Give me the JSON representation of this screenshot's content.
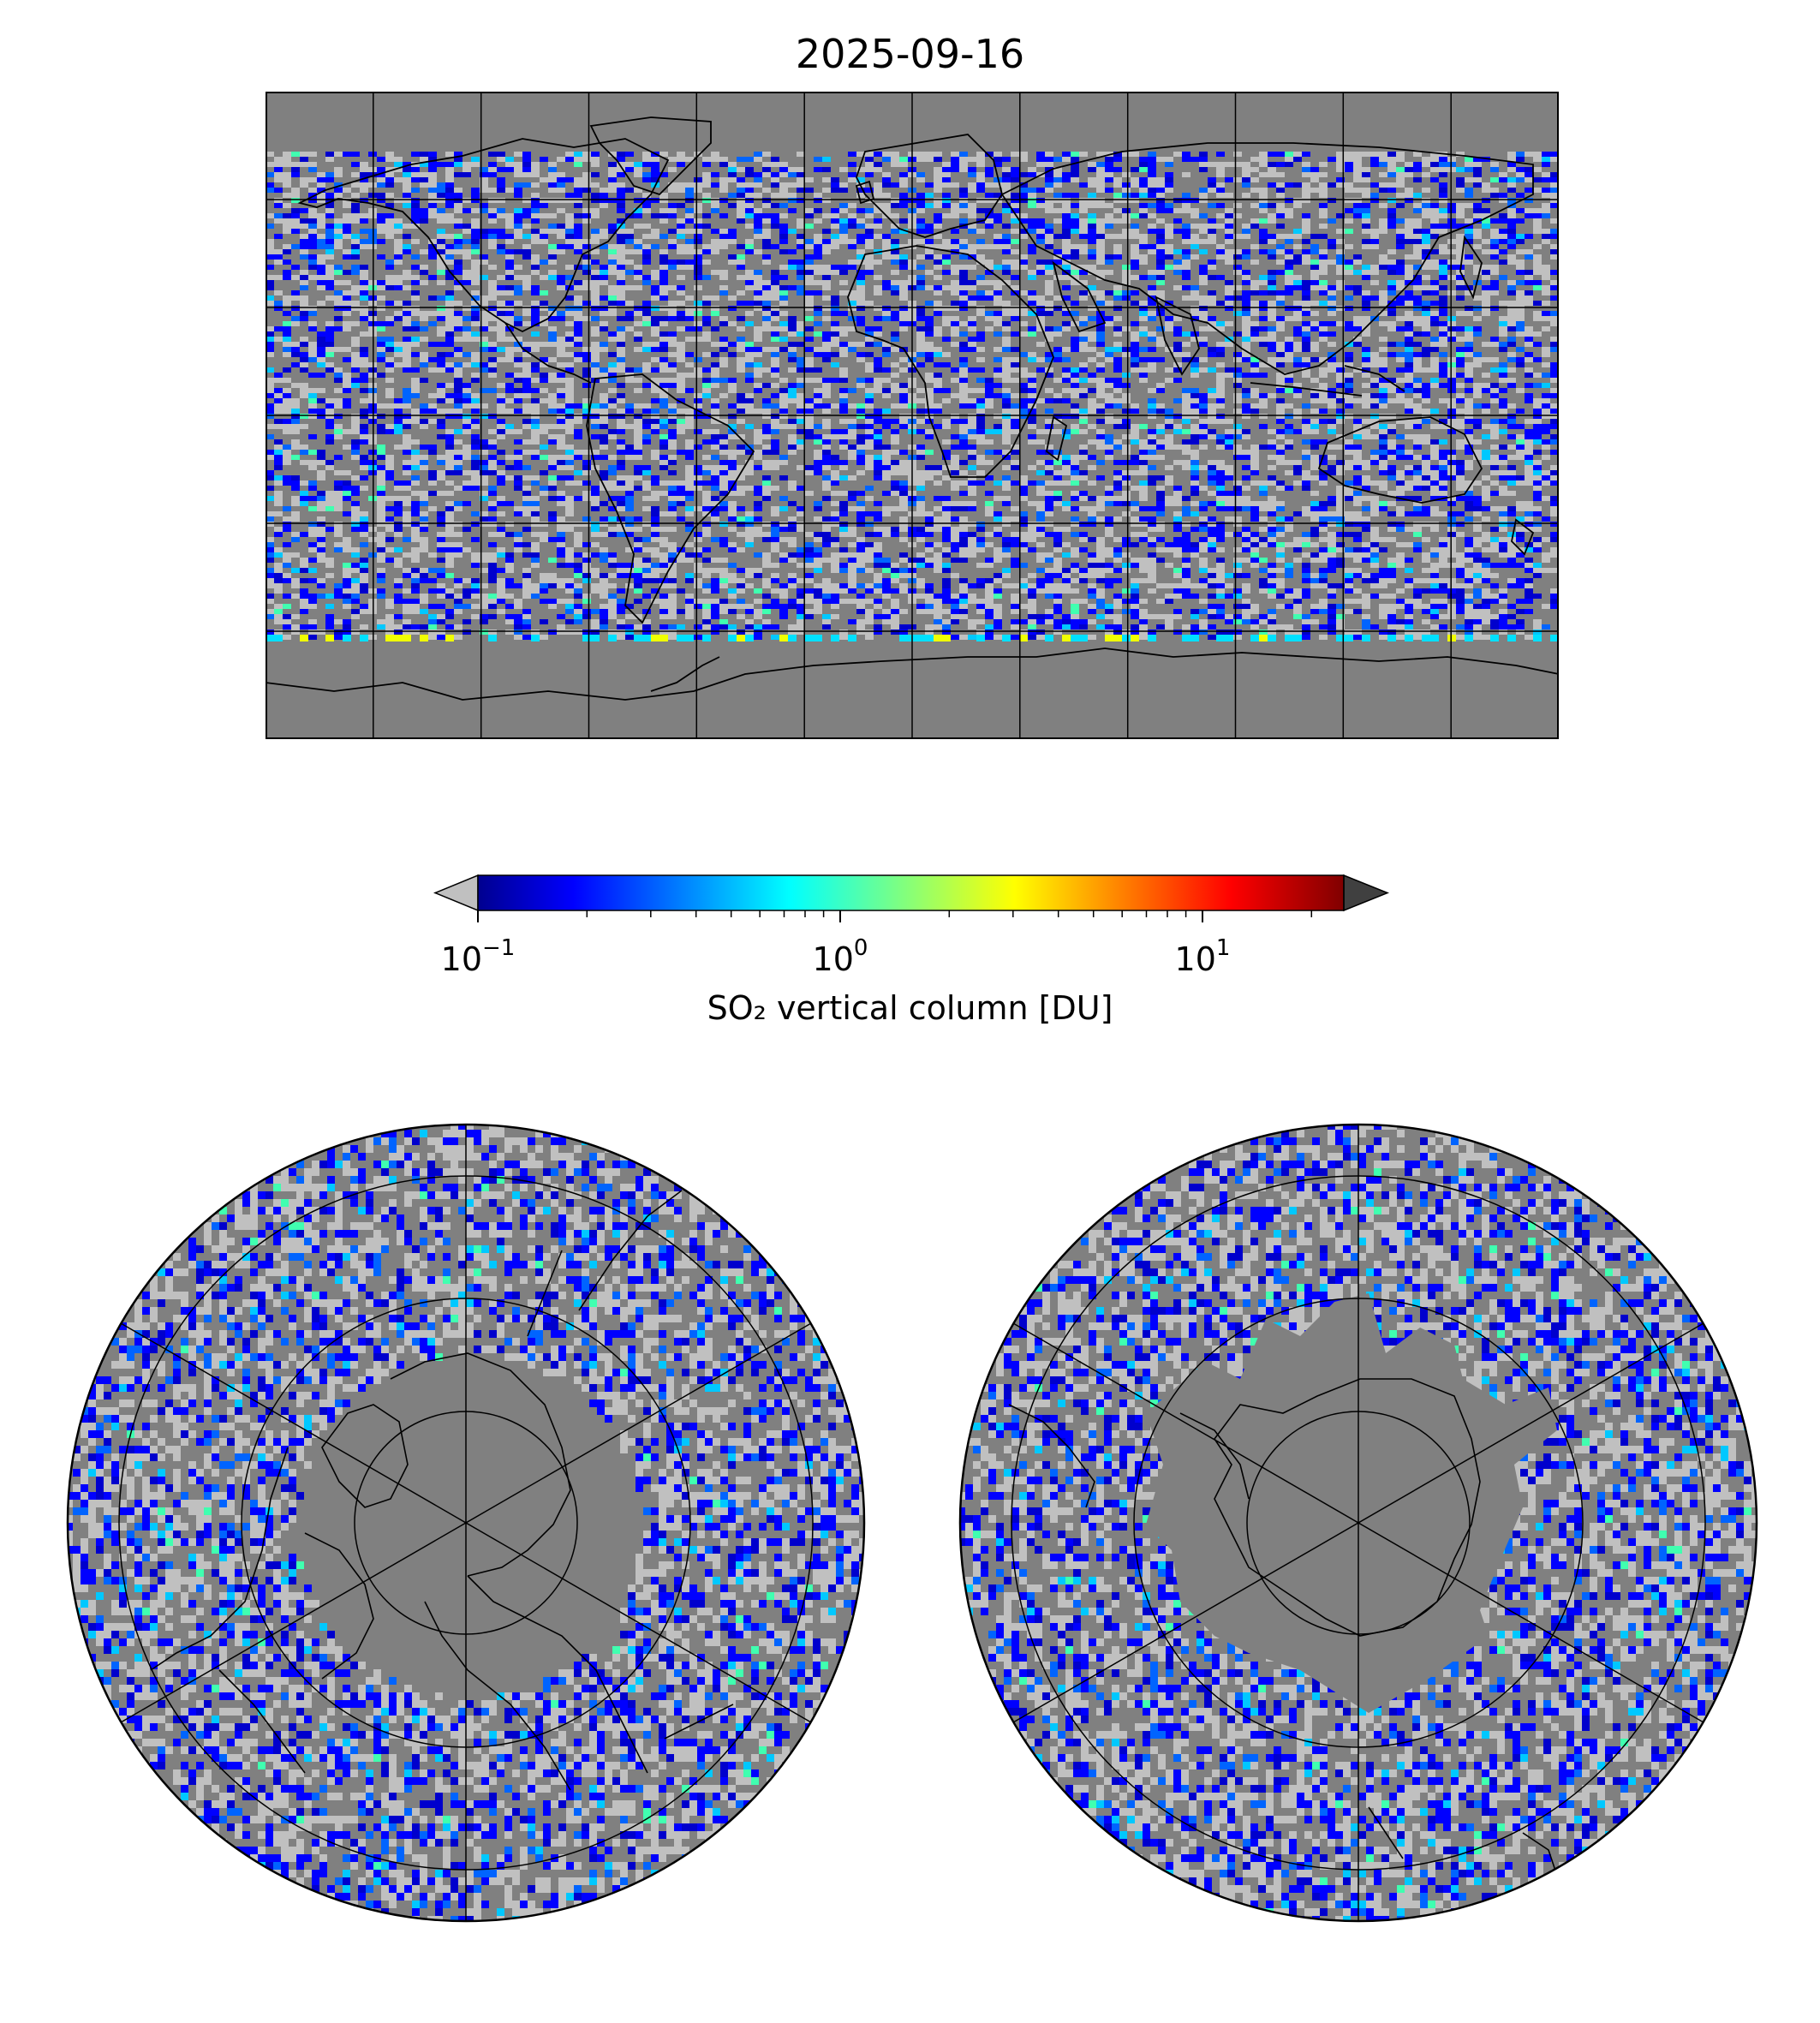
{
  "figure": {
    "title": "2025-09-16"
  },
  "colorbar": {
    "label": "SO₂ vertical column [DU]",
    "scale": "log",
    "range": [
      0.1,
      25
    ],
    "extend": "both",
    "colormap": "jet",
    "under_color": "#c0c0c0",
    "over_color": "#404040",
    "ticks": [
      {
        "base": "10",
        "exponent": "−1"
      },
      {
        "base": "10",
        "exponent": "0"
      },
      {
        "base": "10",
        "exponent": "1"
      }
    ]
  },
  "maps": {
    "world": {
      "projection": "plate-carree",
      "gridlines": true,
      "coastlines": true
    },
    "north_polar": {
      "projection": "north-polar-stereographic",
      "gridlines": true,
      "coastlines": true
    },
    "south_polar": {
      "projection": "south-polar-stereographic",
      "gridlines": true,
      "coastlines": true
    }
  },
  "colors": {
    "no_data": "#808080",
    "below_range": "#c0c0c0",
    "above_range": "#404040",
    "gridline": "#000000"
  }
}
